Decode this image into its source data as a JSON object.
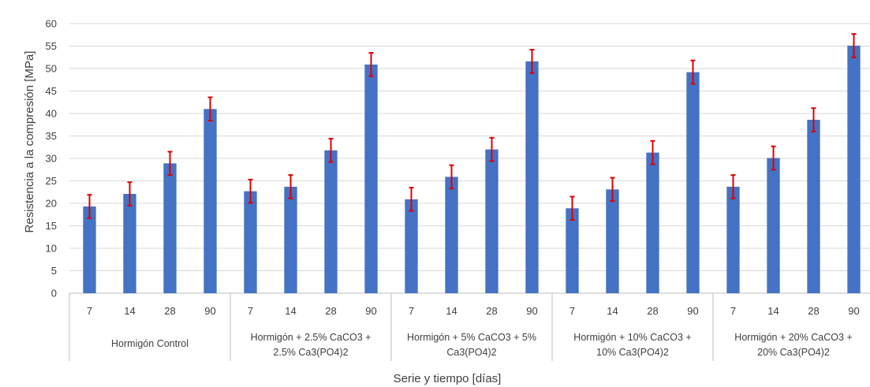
{
  "chart_data": {
    "type": "bar",
    "xlabel": "Serie y tiempo [días]",
    "ylabel": "Resistencia a la compresión [MPa]",
    "ylim": [
      0,
      60
    ],
    "yticks": [
      0,
      5,
      10,
      15,
      20,
      25,
      30,
      35,
      40,
      45,
      50,
      55,
      60
    ],
    "grid": true,
    "legend": "none",
    "colors": {
      "bar": "#4472C4",
      "error": "#E00000",
      "grid": "#D9D9D9",
      "axis": "#BFBFBF"
    },
    "groups": [
      {
        "label_lines": [
          "Hormigón Control"
        ],
        "categories": [
          "7",
          "14",
          "28",
          "90"
        ],
        "values": [
          19.3,
          22.1,
          28.9,
          41.0
        ],
        "errors": [
          2.6,
          2.6,
          2.6,
          2.6
        ]
      },
      {
        "label_lines": [
          "Hormigón + 2.5% CaCO3 +",
          "2.5% Ca3(PO4)2"
        ],
        "categories": [
          "7",
          "14",
          "28",
          "90"
        ],
        "values": [
          22.7,
          23.7,
          31.8,
          50.9
        ],
        "errors": [
          2.6,
          2.6,
          2.6,
          2.6
        ]
      },
      {
        "label_lines": [
          "Hormigón + 5% CaCO3 + 5%",
          "Ca3(PO4)2"
        ],
        "categories": [
          "7",
          "14",
          "28",
          "90"
        ],
        "values": [
          20.9,
          25.9,
          32.0,
          51.6
        ],
        "errors": [
          2.6,
          2.6,
          2.6,
          2.6
        ]
      },
      {
        "label_lines": [
          "Hormigón + 10% CaCO3 +",
          "10% Ca3(PO4)2"
        ],
        "categories": [
          "7",
          "14",
          "28",
          "90"
        ],
        "values": [
          18.9,
          23.1,
          31.3,
          49.2
        ],
        "errors": [
          2.6,
          2.6,
          2.6,
          2.6
        ]
      },
      {
        "label_lines": [
          "Hormigón + 20% CaCO3 +",
          "20% Ca3(PO4)2"
        ],
        "categories": [
          "7",
          "14",
          "28",
          "90"
        ],
        "values": [
          23.7,
          30.1,
          38.6,
          55.1
        ],
        "errors": [
          2.6,
          2.6,
          2.6,
          2.6
        ]
      }
    ]
  }
}
